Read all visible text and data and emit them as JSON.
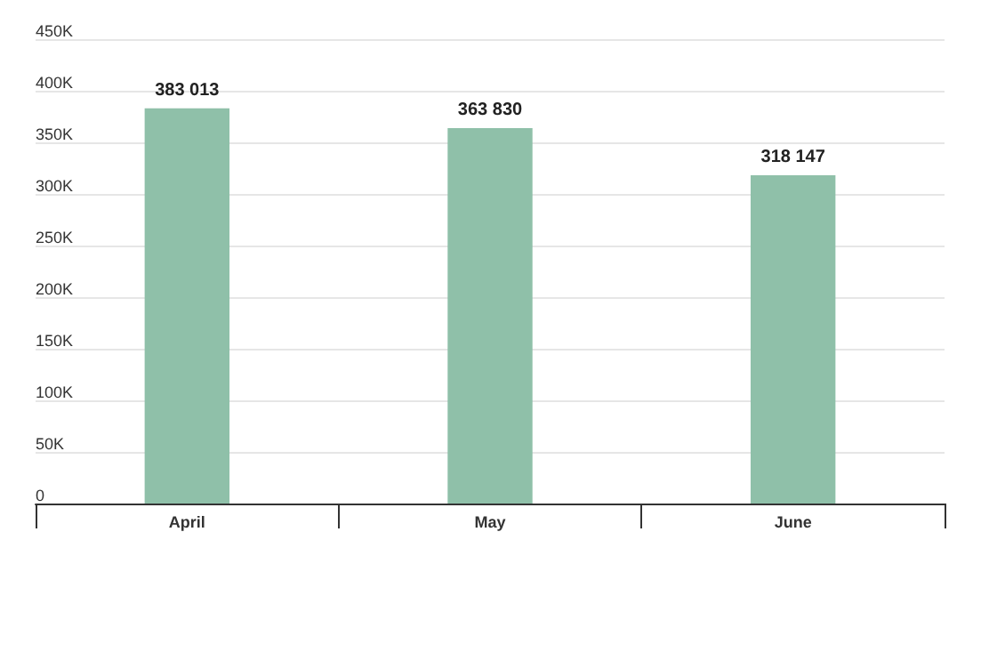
{
  "chart_data": {
    "type": "bar",
    "categories": [
      "April",
      "May",
      "June"
    ],
    "values": [
      383013,
      363830,
      318147
    ],
    "color": "#8fc0a9",
    "value_labels": [
      "383 013",
      "363 830",
      "318 147"
    ],
    "ylim": [
      0,
      450000
    ],
    "yticks": [
      {
        "value": 0,
        "label": "0"
      },
      {
        "value": 50000,
        "label": "50K"
      },
      {
        "value": 100000,
        "label": "100K"
      },
      {
        "value": 150000,
        "label": "150K"
      },
      {
        "value": 200000,
        "label": "200K"
      },
      {
        "value": 250000,
        "label": "250K"
      },
      {
        "value": 300000,
        "label": "300K"
      },
      {
        "value": 350000,
        "label": "350K"
      },
      {
        "value": 400000,
        "label": "400K"
      },
      {
        "value": 450000,
        "label": "450K"
      }
    ],
    "grid": "y"
  }
}
